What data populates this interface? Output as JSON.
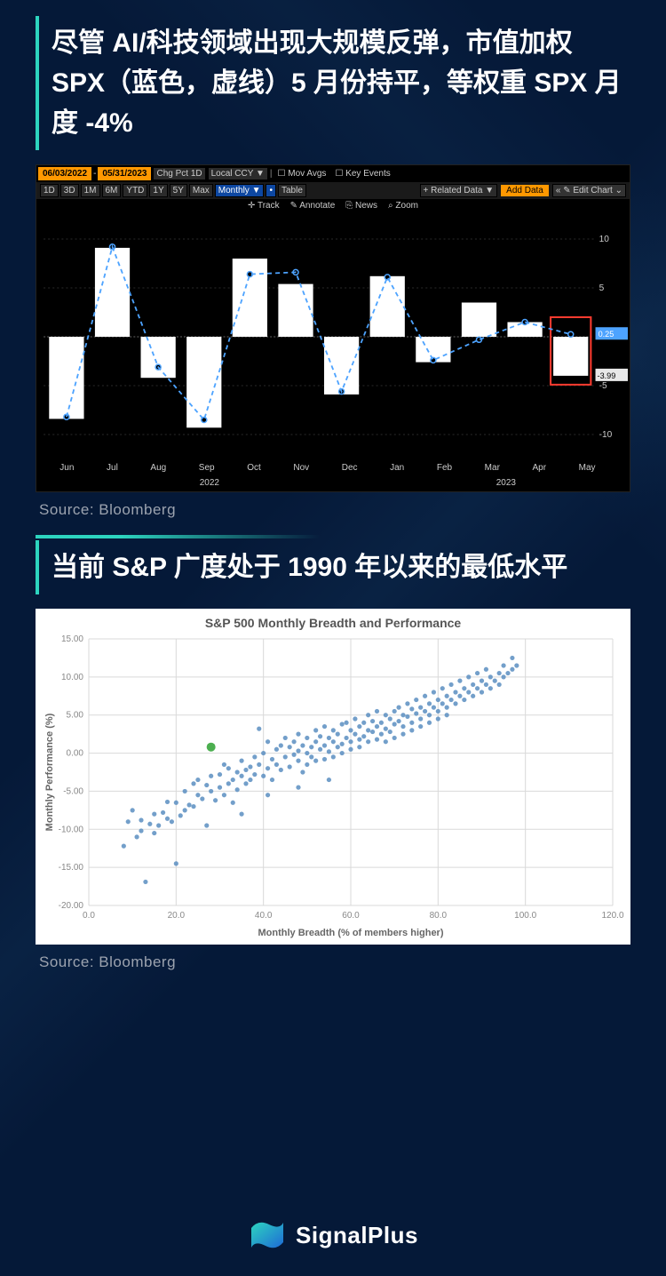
{
  "section1": {
    "headline": "尽管 AI/科技领域出现大规模反弹，市值加权 SPX（蓝色，虚线）5 月份持平，等权重 SPX 月度 -4%",
    "source": "Source: Bloomberg"
  },
  "section2": {
    "headline": "当前 S&P 广度处于 1990 年以来的最低水平",
    "source": "Source: Bloomberg"
  },
  "bbg": {
    "date_from": "06/03/2022",
    "date_to": "05/31/2023",
    "range_buttons": [
      "1D",
      "3D",
      "1M",
      "6M",
      "YTD",
      "1Y",
      "5Y",
      "Max"
    ],
    "range_selected": "Monthly ▼",
    "type_button": "Chg Pct 1D",
    "ccy_button": "Local CCY ▼",
    "check_mov": "Mov Avgs",
    "check_key": "Key Events",
    "tab_chart": "•",
    "tab_table": "Table",
    "right_related": "+ Related Data ▼",
    "right_add": "Add Data",
    "right_edit": "« ✎ Edit Chart  ⌄",
    "tools": [
      "✛ Track",
      "✎ Annotate",
      "⎘ News",
      "⌕ Zoom"
    ],
    "y_ticks": [
      -10,
      -5,
      0,
      5,
      10
    ],
    "y_label_a": "0.25",
    "y_label_b": "-3.99",
    "x_labels": [
      "Jun",
      "Jul",
      "Aug",
      "Sep",
      "Oct",
      "Nov",
      "Dec",
      "Jan",
      "Feb",
      "Mar",
      "Apr",
      "May"
    ],
    "x_sub_a": "2022",
    "x_sub_b": "2023",
    "bars": [
      -8.4,
      9.1,
      -4.2,
      -9.3,
      8.0,
      5.4,
      -5.9,
      6.2,
      -2.6,
      3.5,
      1.5,
      -3.99
    ],
    "line": [
      -8.2,
      9.2,
      -3.1,
      -8.5,
      6.4,
      6.6,
      -5.6,
      6.1,
      -2.4,
      -0.3,
      1.5,
      0.25
    ],
    "highlight_index": 11,
    "colors": {
      "bar_fill": "#ffffff",
      "line": "#4da3ff",
      "grid": "#3a3a3a",
      "axis_text": "#cccccc",
      "highlight_box": "#ff3b2f",
      "label_a_bg": "#4da3ff",
      "label_b_bg": "#e8e8e8",
      "label_b_text": "#000000",
      "orange": "#ff9800",
      "bg": "#000000"
    }
  },
  "scatter": {
    "title": "S&P 500 Monthly Breadth and Performance",
    "xlabel": "Monthly Breadth (% of members higher)",
    "ylabel": "Monthly Performance (%)",
    "xlim": [
      0,
      120
    ],
    "ylim": [
      -20,
      15
    ],
    "xticks": [
      0,
      20,
      40,
      60,
      80,
      100,
      120
    ],
    "yticks": [
      -20,
      -15,
      -10,
      -5,
      0,
      5,
      10,
      15
    ],
    "xtick_labels": [
      "0.0",
      "20.0",
      "40.0",
      "60.0",
      "80.0",
      "100.0",
      "120.0"
    ],
    "ytick_labels": [
      "-20.00",
      "-15.00",
      "-10.00",
      "-5.00",
      "0.00",
      "5.00",
      "10.00",
      "15.00"
    ],
    "point_color": "#5b8ec1",
    "highlight_color": "#4caf50",
    "highlight_point": [
      28,
      0.8
    ],
    "grid_color": "#d9d9d9",
    "axis_font": 10,
    "title_font": 14,
    "points": [
      [
        8,
        -12.2
      ],
      [
        9,
        -9.0
      ],
      [
        10,
        -7.5
      ],
      [
        11,
        -11.0
      ],
      [
        12,
        -10.2
      ],
      [
        12,
        -8.8
      ],
      [
        13,
        -16.9
      ],
      [
        14,
        -9.3
      ],
      [
        15,
        -10.5
      ],
      [
        15,
        -8.0
      ],
      [
        16,
        -9.5
      ],
      [
        17,
        -7.8
      ],
      [
        18,
        -8.6
      ],
      [
        18,
        -6.4
      ],
      [
        19,
        -9.0
      ],
      [
        20,
        -14.5
      ],
      [
        20,
        -6.5
      ],
      [
        21,
        -8.2
      ],
      [
        22,
        -5.0
      ],
      [
        22,
        -7.5
      ],
      [
        23,
        -6.8
      ],
      [
        24,
        -4.0
      ],
      [
        24,
        -7.0
      ],
      [
        25,
        -5.5
      ],
      [
        25,
        -3.5
      ],
      [
        26,
        -6.0
      ],
      [
        27,
        -4.2
      ],
      [
        27,
        -9.5
      ],
      [
        28,
        -5.0
      ],
      [
        28,
        -3.0
      ],
      [
        29,
        -6.2
      ],
      [
        30,
        -4.5
      ],
      [
        30,
        -2.8
      ],
      [
        31,
        -5.5
      ],
      [
        31,
        -1.5
      ],
      [
        32,
        -4.0
      ],
      [
        32,
        -2.0
      ],
      [
        33,
        -3.5
      ],
      [
        33,
        -6.5
      ],
      [
        34,
        -2.5
      ],
      [
        34,
        -4.8
      ],
      [
        35,
        -3.0
      ],
      [
        35,
        -1.0
      ],
      [
        36,
        -2.2
      ],
      [
        36,
        -4.0
      ],
      [
        37,
        -1.8
      ],
      [
        37,
        -3.5
      ],
      [
        38,
        -0.5
      ],
      [
        38,
        -2.8
      ],
      [
        39,
        3.2
      ],
      [
        39,
        -1.5
      ],
      [
        40,
        -3.0
      ],
      [
        40,
        0.0
      ],
      [
        41,
        -2.0
      ],
      [
        41,
        1.5
      ],
      [
        42,
        -0.8
      ],
      [
        42,
        -3.5
      ],
      [
        43,
        0.5
      ],
      [
        43,
        -1.5
      ],
      [
        44,
        -2.2
      ],
      [
        44,
        1.0
      ],
      [
        45,
        -0.5
      ],
      [
        45,
        2.0
      ],
      [
        46,
        -1.8
      ],
      [
        46,
        0.8
      ],
      [
        47,
        -0.2
      ],
      [
        47,
        1.5
      ],
      [
        48,
        -1.0
      ],
      [
        48,
        2.5
      ],
      [
        48,
        0.3
      ],
      [
        49,
        -2.5
      ],
      [
        49,
        1.0
      ],
      [
        50,
        0.0
      ],
      [
        50,
        2.0
      ],
      [
        50,
        -1.5
      ],
      [
        51,
        0.8
      ],
      [
        51,
        -0.5
      ],
      [
        52,
        1.5
      ],
      [
        52,
        3.0
      ],
      [
        52,
        -1.0
      ],
      [
        53,
        0.5
      ],
      [
        53,
        2.2
      ],
      [
        54,
        1.0
      ],
      [
        54,
        -0.8
      ],
      [
        54,
        3.5
      ],
      [
        55,
        0.2
      ],
      [
        55,
        2.0
      ],
      [
        56,
        1.5
      ],
      [
        56,
        -0.5
      ],
      [
        56,
        3.0
      ],
      [
        57,
        0.8
      ],
      [
        57,
        2.5
      ],
      [
        58,
        1.2
      ],
      [
        58,
        3.8
      ],
      [
        58,
        0.0
      ],
      [
        59,
        2.0
      ],
      [
        59,
        4.0
      ],
      [
        60,
        1.5
      ],
      [
        60,
        3.0
      ],
      [
        60,
        0.5
      ],
      [
        61,
        2.5
      ],
      [
        61,
        4.5
      ],
      [
        62,
        1.8
      ],
      [
        62,
        3.5
      ],
      [
        62,
        0.8
      ],
      [
        63,
        2.2
      ],
      [
        63,
        4.0
      ],
      [
        64,
        3.0
      ],
      [
        64,
        1.5
      ],
      [
        64,
        5.0
      ],
      [
        65,
        2.8
      ],
      [
        65,
        4.2
      ],
      [
        66,
        3.5
      ],
      [
        66,
        1.8
      ],
      [
        66,
        5.5
      ],
      [
        67,
        4.0
      ],
      [
        67,
        2.5
      ],
      [
        68,
        3.2
      ],
      [
        68,
        5.0
      ],
      [
        68,
        1.5
      ],
      [
        69,
        4.5
      ],
      [
        69,
        2.8
      ],
      [
        70,
        3.8
      ],
      [
        70,
        5.5
      ],
      [
        70,
        2.0
      ],
      [
        71,
        4.2
      ],
      [
        71,
        6.0
      ],
      [
        72,
        3.5
      ],
      [
        72,
        5.0
      ],
      [
        72,
        2.5
      ],
      [
        73,
        4.8
      ],
      [
        73,
        6.5
      ],
      [
        74,
        4.0
      ],
      [
        74,
        5.8
      ],
      [
        74,
        3.0
      ],
      [
        75,
        5.2
      ],
      [
        75,
        7.0
      ],
      [
        76,
        4.5
      ],
      [
        76,
        6.0
      ],
      [
        76,
        3.5
      ],
      [
        77,
        5.5
      ],
      [
        77,
        7.5
      ],
      [
        78,
        5.0
      ],
      [
        78,
        6.5
      ],
      [
        78,
        4.0
      ],
      [
        79,
        6.0
      ],
      [
        79,
        8.0
      ],
      [
        80,
        5.5
      ],
      [
        80,
        7.0
      ],
      [
        80,
        4.5
      ],
      [
        81,
        6.5
      ],
      [
        81,
        8.5
      ],
      [
        82,
        6.0
      ],
      [
        82,
        7.5
      ],
      [
        82,
        5.0
      ],
      [
        83,
        7.0
      ],
      [
        83,
        9.0
      ],
      [
        84,
        6.5
      ],
      [
        84,
        8.0
      ],
      [
        85,
        7.5
      ],
      [
        85,
        9.5
      ],
      [
        86,
        7.0
      ],
      [
        86,
        8.5
      ],
      [
        87,
        8.0
      ],
      [
        87,
        10.0
      ],
      [
        88,
        7.5
      ],
      [
        88,
        9.0
      ],
      [
        89,
        8.5
      ],
      [
        89,
        10.5
      ],
      [
        90,
        8.0
      ],
      [
        90,
        9.5
      ],
      [
        91,
        9.0
      ],
      [
        91,
        11.0
      ],
      [
        92,
        8.5
      ],
      [
        92,
        10.0
      ],
      [
        93,
        9.5
      ],
      [
        94,
        10.5
      ],
      [
        94,
        9.0
      ],
      [
        95,
        10.0
      ],
      [
        95,
        11.5
      ],
      [
        96,
        10.5
      ],
      [
        97,
        11.0
      ],
      [
        97,
        12.5
      ],
      [
        98,
        11.5
      ],
      [
        35,
        -8.0
      ],
      [
        41,
        -5.5
      ],
      [
        48,
        -4.5
      ],
      [
        55,
        -3.5
      ]
    ]
  },
  "footer": {
    "brand": "SignalPlus"
  }
}
